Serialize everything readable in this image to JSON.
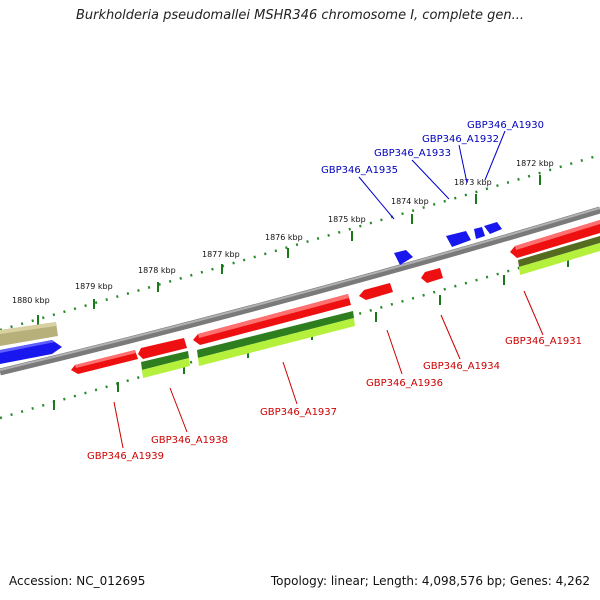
{
  "title": "Burkholderia pseudomallei MSHR346 chromosome I, complete gen...",
  "footer": {
    "accession": "Accession: NC_012695",
    "summary": "Topology: linear; Length: 4,098,576 bp; Genes: 4,262"
  },
  "colors": {
    "backbone": "#808080",
    "forward_gene": "#0000ff",
    "reverse_gene": "#ff0000",
    "reverse_label": "#cc0000",
    "forward_label": "#0000bb",
    "cds_dark": "#2e7d1f",
    "cds_light": "#b4f03c",
    "olive": "#b8b07a",
    "tick": "#2a8a2a"
  },
  "kbp_labels": [
    "1880 kbp",
    "1879 kbp",
    "1878 kbp",
    "1877 kbp",
    "1876 kbp",
    "1875 kbp",
    "1874 kbp",
    "1873 kbp",
    "1872 kbp"
  ],
  "forward_genes": [
    "GBP346_A1935",
    "GBP346_A1933",
    "GBP346_A1932",
    "GBP346_A1930"
  ],
  "reverse_genes": [
    "GBP346_A1939",
    "GBP346_A1938",
    "GBP346_A1937",
    "GBP346_A1936",
    "GBP346_A1934",
    "GBP346_A1931"
  ]
}
